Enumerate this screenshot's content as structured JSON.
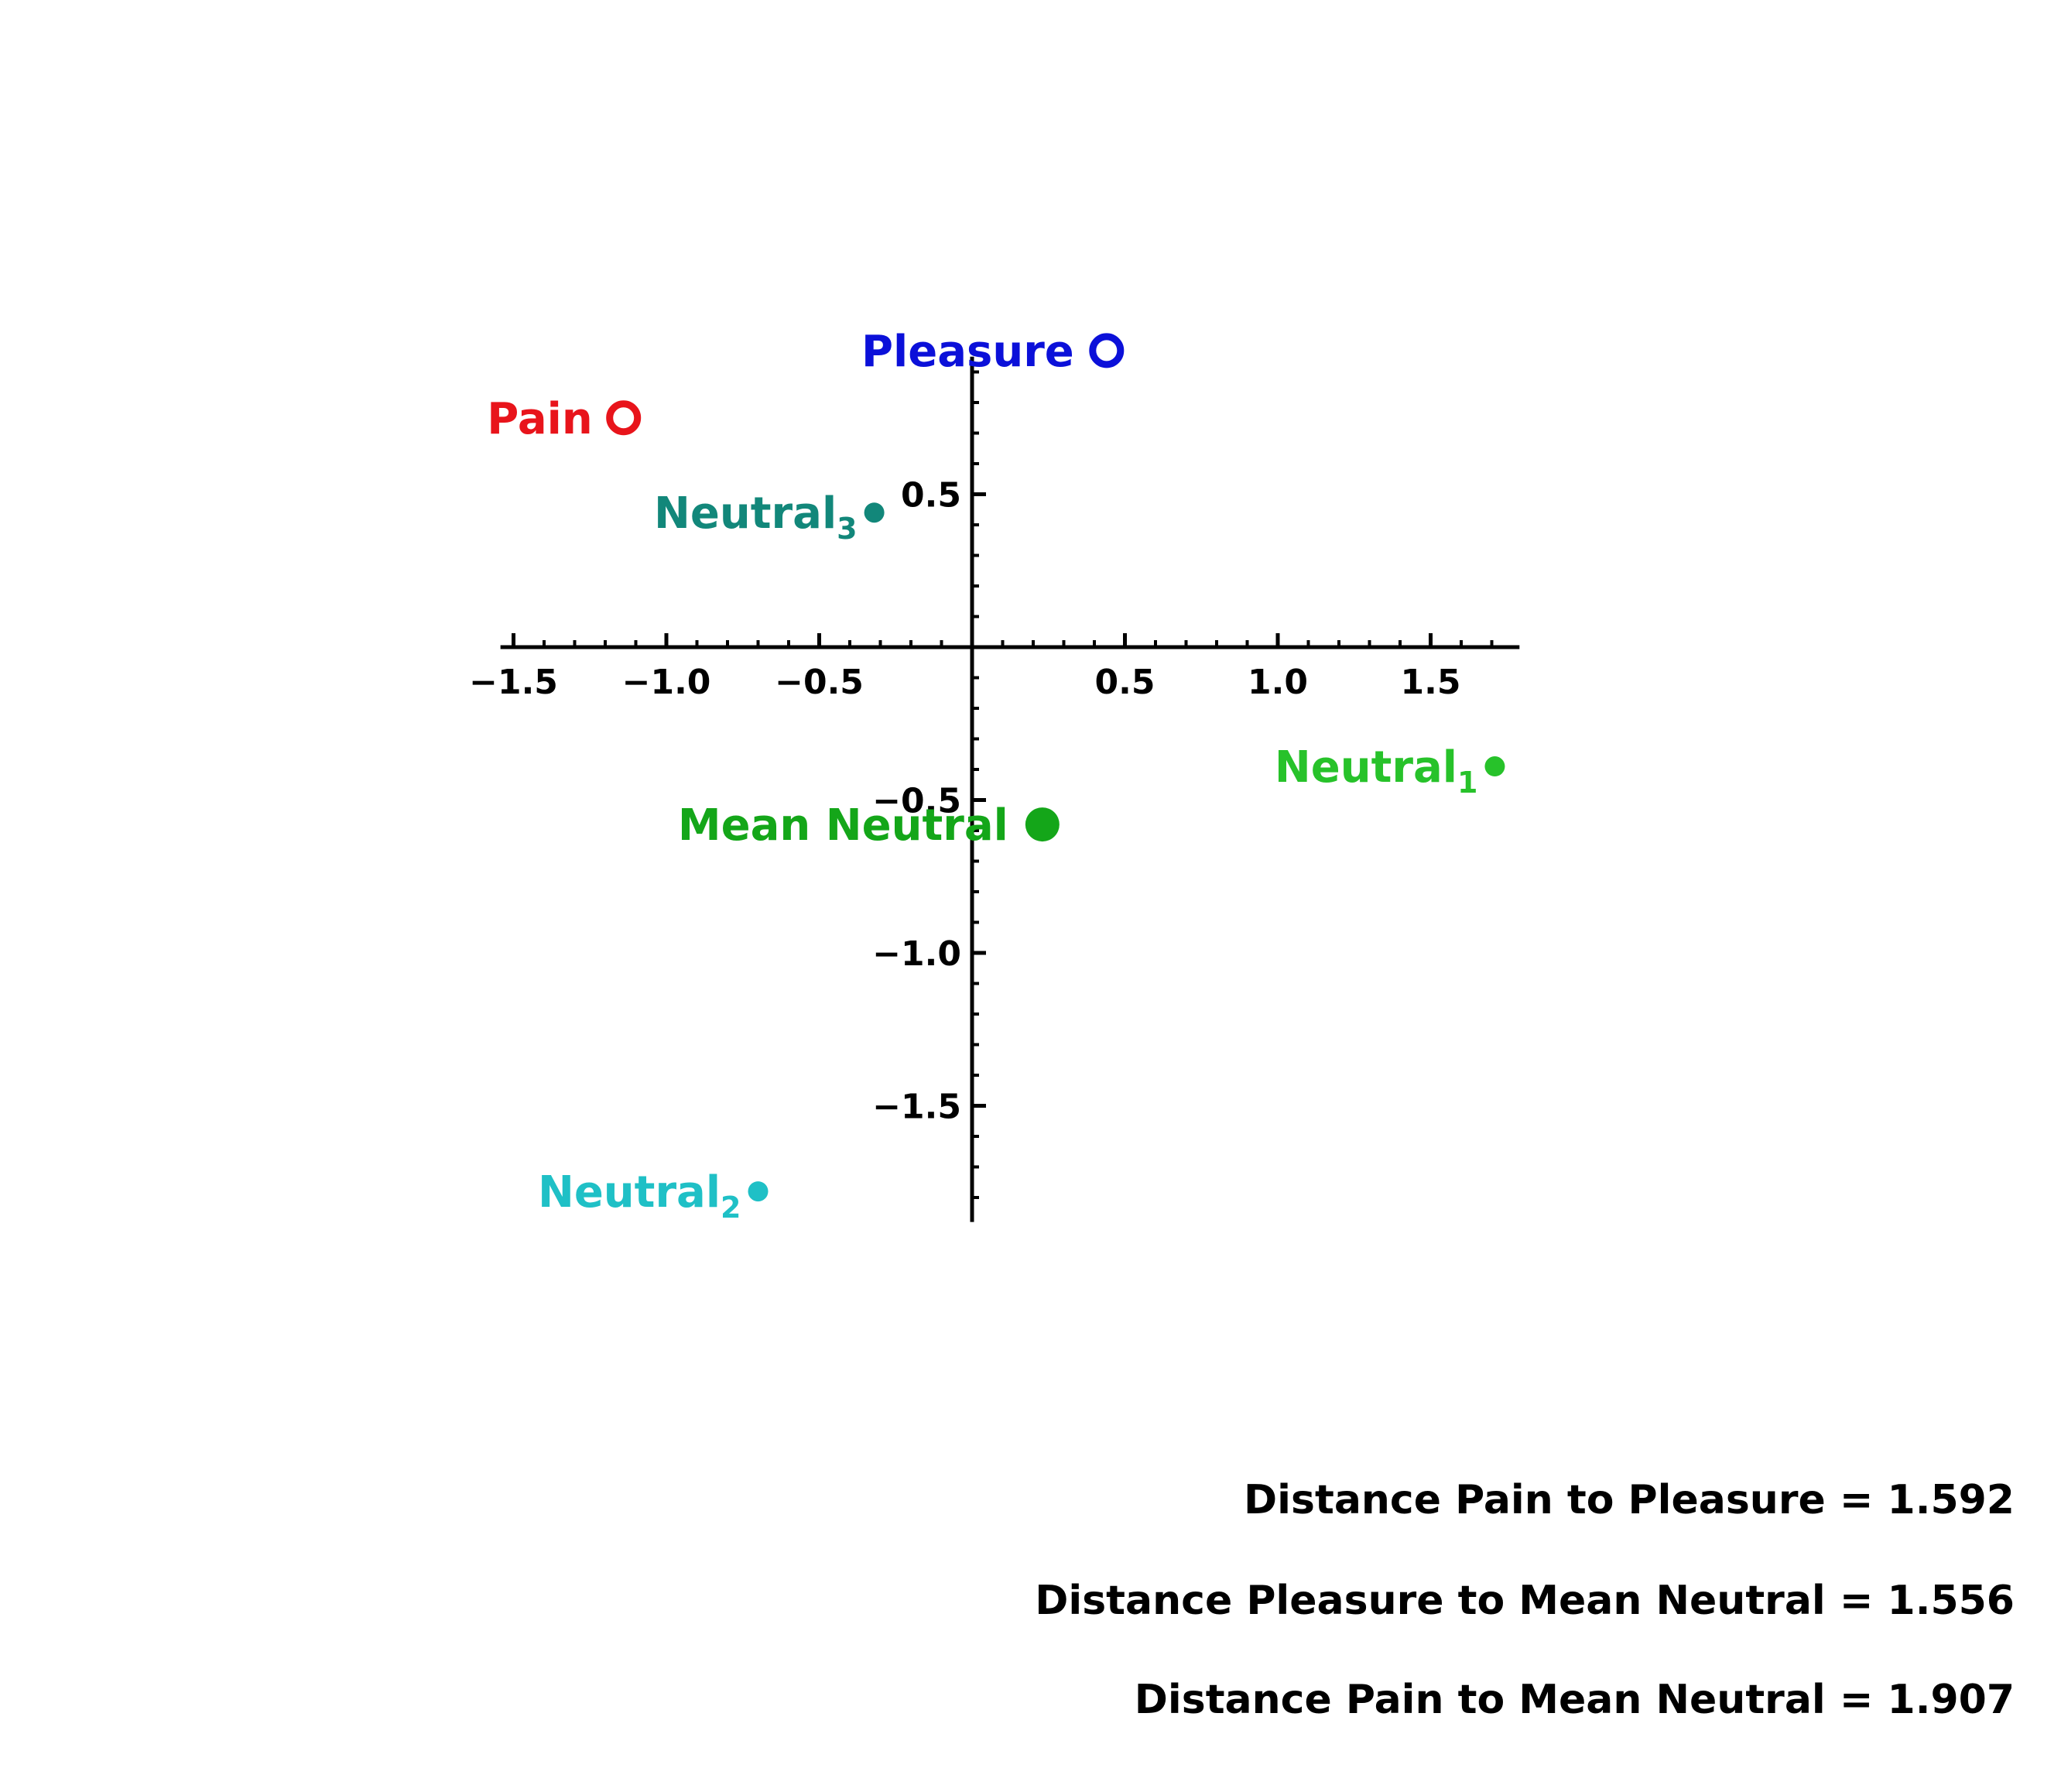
{
  "chart_data": {
    "type": "scatter",
    "title": "",
    "xlabel": "",
    "ylabel": "",
    "xlim": [
      -1.53,
      1.74
    ],
    "ylim": [
      -1.88,
      0.95
    ],
    "grid": false,
    "x_ticks": [
      {
        "value": -1.5,
        "label": "−1.5"
      },
      {
        "value": -1.0,
        "label": "−1.0"
      },
      {
        "value": -0.5,
        "label": "−0.5"
      },
      {
        "value": 0.5,
        "label": "0.5"
      },
      {
        "value": 1.0,
        "label": "1.0"
      },
      {
        "value": 1.5,
        "label": "1.5"
      }
    ],
    "y_ticks": [
      {
        "value": 0.5,
        "label": "0.5"
      },
      {
        "value": -0.5,
        "label": "−0.5"
      },
      {
        "value": -1.0,
        "label": "−1.0"
      },
      {
        "value": -1.5,
        "label": "−1.5"
      }
    ],
    "points": [
      {
        "id": "pain",
        "name": "Pain",
        "sub": "",
        "x": -1.14,
        "y": 0.75,
        "color": "#e8141b",
        "marker": "open"
      },
      {
        "id": "pleasure",
        "name": "Pleasure",
        "sub": "",
        "x": 0.44,
        "y": 0.97,
        "color": "#0b10d9",
        "marker": "open"
      },
      {
        "id": "neutral3",
        "name": "Neutral",
        "sub": "3",
        "x": -0.32,
        "y": 0.44,
        "color": "#12877a",
        "marker": "filled"
      },
      {
        "id": "neutral1",
        "name": "Neutral",
        "sub": "1",
        "x": 1.71,
        "y": -0.39,
        "color": "#27c22a",
        "marker": "filled"
      },
      {
        "id": "neutral2",
        "name": "Neutral",
        "sub": "2",
        "x": -0.7,
        "y": -1.78,
        "color": "#1fc0c6",
        "marker": "filled"
      },
      {
        "id": "mean-neutral",
        "name": "Mean Neutral",
        "sub": "",
        "x": 0.23,
        "y": -0.58,
        "color": "#14a619",
        "marker": "filled-large"
      }
    ],
    "annotations": [
      "Distance Pain to Pleasure = 1.592",
      "Distance Pleasure to Mean Neutral = 1.556",
      "Distance Pain to Mean Neutral = 1.907"
    ]
  }
}
